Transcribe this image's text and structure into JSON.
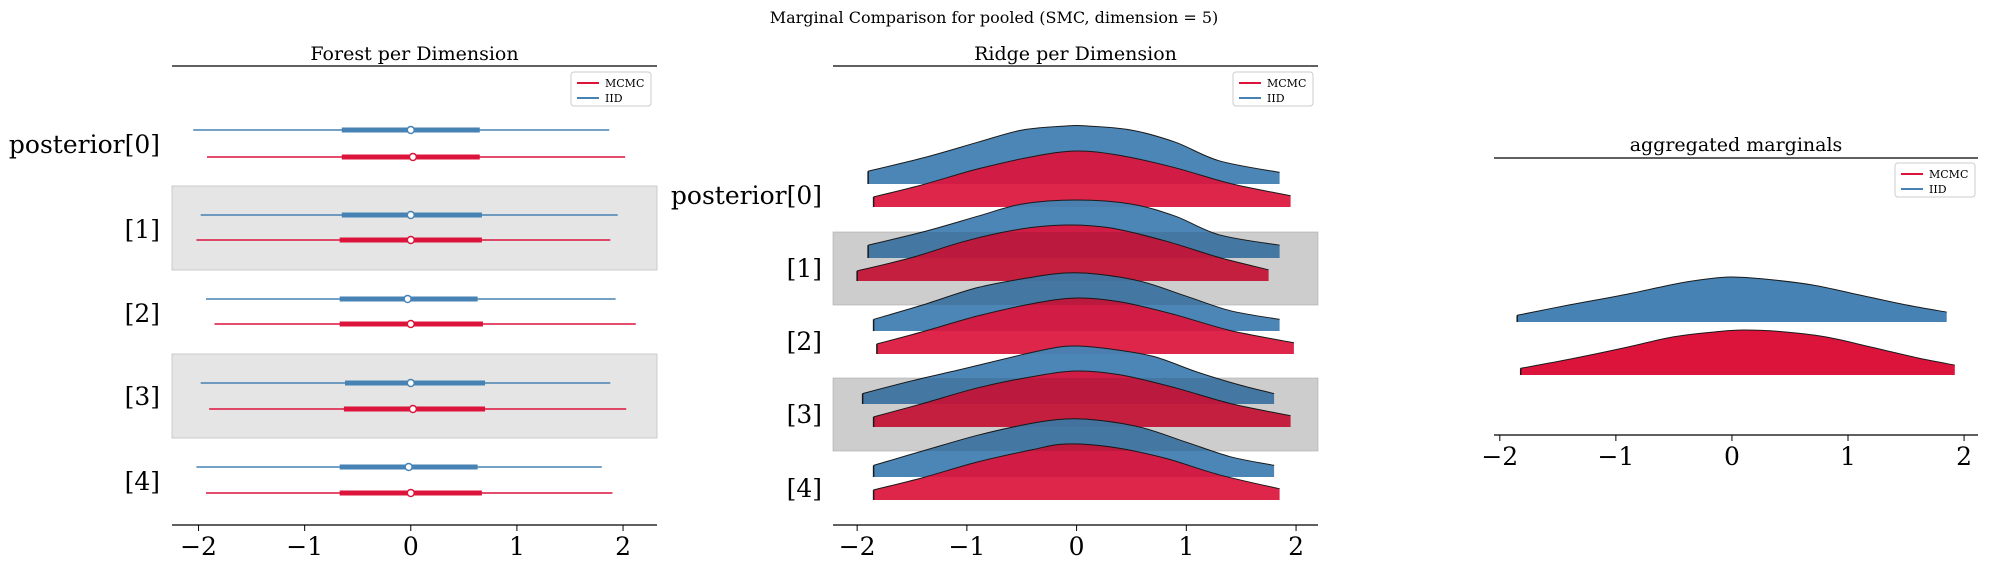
{
  "figure": {
    "suptitle": "Marginal Comparison for pooled (SMC, dimension = 5)"
  },
  "colors": {
    "mcmc": "#dc143c",
    "iid": "#4682b4",
    "band": "#e5e5e5"
  },
  "chart_data": [
    {
      "type": "forest",
      "title": "Forest per Dimension",
      "ylabels": [
        "posterior[0]",
        "[1]",
        "[2]",
        "[3]",
        "[4]"
      ],
      "xticks": [
        -2,
        -1,
        0,
        1,
        2
      ],
      "xtick_labels": [
        "−2",
        "−1",
        "0",
        "1",
        "2"
      ],
      "xlim": [
        -2.25,
        2.32
      ],
      "legend": {
        "placement": "top-right",
        "entries": [
          "MCMC",
          "IID"
        ]
      },
      "series": [
        {
          "name": "IID",
          "stats": [
            {
              "low": -2.05,
              "q1": -0.65,
              "median": 0.0,
              "q3": 0.65,
              "high": 1.87
            },
            {
              "low": -1.98,
              "q1": -0.65,
              "median": 0.0,
              "q3": 0.67,
              "high": 1.95
            },
            {
              "low": -1.93,
              "q1": -0.67,
              "median": -0.03,
              "q3": 0.63,
              "high": 1.93
            },
            {
              "low": -1.98,
              "q1": -0.62,
              "median": 0.0,
              "q3": 0.7,
              "high": 1.88
            },
            {
              "low": -2.02,
              "q1": -0.67,
              "median": -0.02,
              "q3": 0.63,
              "high": 1.8
            }
          ]
        },
        {
          "name": "MCMC",
          "stats": [
            {
              "low": -1.92,
              "q1": -0.65,
              "median": 0.02,
              "q3": 0.65,
              "high": 2.02
            },
            {
              "low": -2.02,
              "q1": -0.67,
              "median": 0.0,
              "q3": 0.67,
              "high": 1.88
            },
            {
              "low": -1.85,
              "q1": -0.67,
              "median": 0.0,
              "q3": 0.68,
              "high": 2.12
            },
            {
              "low": -1.9,
              "q1": -0.63,
              "median": 0.02,
              "q3": 0.7,
              "high": 2.03
            },
            {
              "low": -1.93,
              "q1": -0.67,
              "median": 0.0,
              "q3": 0.67,
              "high": 1.9
            }
          ]
        }
      ]
    },
    {
      "type": "ridge",
      "title": "Ridge per Dimension",
      "ylabels": [
        "posterior[0]",
        "[1]",
        "[2]",
        "[3]",
        "[4]"
      ],
      "xticks": [
        -2,
        -1,
        0,
        1,
        2
      ],
      "xtick_labels": [
        "−2",
        "−1",
        "0",
        "1",
        "2"
      ],
      "xlim": [
        -2.22,
        2.2
      ],
      "legend": {
        "placement": "top-right",
        "entries": [
          "MCMC",
          "IID"
        ]
      },
      "series": [
        {
          "name": "IID",
          "densities": [
            {
              "x": [
                -1.9,
                -1.4,
                -0.9,
                -0.5,
                -0.1,
                0.1,
                0.5,
                0.9,
                1.3,
                1.85
              ],
              "y": [
                0.22,
                0.45,
                0.72,
                0.93,
                1.0,
                1.0,
                0.93,
                0.72,
                0.4,
                0.2
              ]
            },
            {
              "x": [
                -1.9,
                -1.4,
                -0.9,
                -0.5,
                0.0,
                0.5,
                0.9,
                1.3,
                1.85
              ],
              "y": [
                0.22,
                0.45,
                0.72,
                0.93,
                1.0,
                0.93,
                0.72,
                0.4,
                0.22
              ]
            },
            {
              "x": [
                -1.85,
                -1.4,
                -0.9,
                -0.4,
                -0.1,
                0.2,
                0.6,
                1.0,
                1.4,
                1.85
              ],
              "y": [
                0.2,
                0.45,
                0.75,
                0.93,
                1.0,
                0.98,
                0.85,
                0.6,
                0.35,
                0.2
              ]
            },
            {
              "x": [
                -1.95,
                -1.5,
                -1.0,
                -0.5,
                -0.2,
                0.0,
                0.3,
                0.7,
                1.1,
                1.5,
                1.8
              ],
              "y": [
                0.18,
                0.4,
                0.62,
                0.85,
                0.97,
                1.0,
                0.95,
                0.82,
                0.55,
                0.32,
                0.18
              ]
            },
            {
              "x": [
                -1.85,
                -1.4,
                -0.9,
                -0.4,
                -0.1,
                0.2,
                0.6,
                1.0,
                1.4,
                1.8
              ],
              "y": [
                0.2,
                0.45,
                0.72,
                0.93,
                1.0,
                0.98,
                0.85,
                0.6,
                0.35,
                0.2
              ]
            }
          ]
        },
        {
          "name": "MCMC",
          "densities": [
            {
              "x": [
                -1.85,
                -1.4,
                -0.9,
                -0.4,
                0.0,
                0.4,
                0.9,
                1.4,
                1.95
              ],
              "y": [
                0.18,
                0.4,
                0.68,
                0.9,
                1.0,
                0.92,
                0.7,
                0.42,
                0.2
              ]
            },
            {
              "x": [
                -2.0,
                -1.5,
                -1.0,
                -0.5,
                -0.1,
                0.3,
                0.8,
                1.3,
                1.75
              ],
              "y": [
                0.18,
                0.42,
                0.72,
                0.93,
                1.0,
                0.95,
                0.72,
                0.42,
                0.2
              ]
            },
            {
              "x": [
                -1.82,
                -1.4,
                -0.9,
                -0.4,
                0.0,
                0.4,
                0.9,
                1.4,
                1.98
              ],
              "y": [
                0.18,
                0.4,
                0.68,
                0.9,
                1.0,
                0.93,
                0.7,
                0.42,
                0.2
              ]
            },
            {
              "x": [
                -1.85,
                -1.4,
                -0.9,
                -0.4,
                0.0,
                0.4,
                0.9,
                1.4,
                1.95
              ],
              "y": [
                0.18,
                0.42,
                0.7,
                0.9,
                1.0,
                0.93,
                0.7,
                0.42,
                0.2
              ]
            },
            {
              "x": [
                -1.85,
                -1.4,
                -0.9,
                -0.4,
                -0.1,
                0.3,
                0.8,
                1.3,
                1.85
              ],
              "y": [
                0.18,
                0.4,
                0.68,
                0.9,
                1.0,
                0.95,
                0.75,
                0.45,
                0.2
              ]
            }
          ]
        }
      ]
    },
    {
      "type": "ridge",
      "title": "aggregated marginals",
      "xticks": [
        -2,
        -1,
        0,
        1,
        2
      ],
      "xtick_labels": [
        "−2",
        "−1",
        "0",
        "1",
        "2"
      ],
      "xlim": [
        -2.05,
        2.12
      ],
      "legend": {
        "placement": "top-right",
        "entries": [
          "MCMC",
          "IID"
        ]
      },
      "series": [
        {
          "name": "IID",
          "density": {
            "x": [
              -1.85,
              -1.4,
              -0.9,
              -0.5,
              -0.2,
              0.0,
              0.3,
              0.7,
              1.1,
              1.5,
              1.85
            ],
            "y": [
              0.15,
              0.38,
              0.62,
              0.84,
              0.96,
              1.0,
              0.95,
              0.82,
              0.6,
              0.38,
              0.22
            ]
          }
        },
        {
          "name": "MCMC",
          "density": {
            "x": [
              -1.82,
              -1.4,
              -0.9,
              -0.5,
              -0.1,
              0.1,
              0.4,
              0.8,
              1.2,
              1.6,
              1.92
            ],
            "y": [
              0.15,
              0.35,
              0.62,
              0.85,
              0.97,
              1.0,
              0.97,
              0.85,
              0.62,
              0.38,
              0.22
            ]
          }
        }
      ]
    }
  ]
}
